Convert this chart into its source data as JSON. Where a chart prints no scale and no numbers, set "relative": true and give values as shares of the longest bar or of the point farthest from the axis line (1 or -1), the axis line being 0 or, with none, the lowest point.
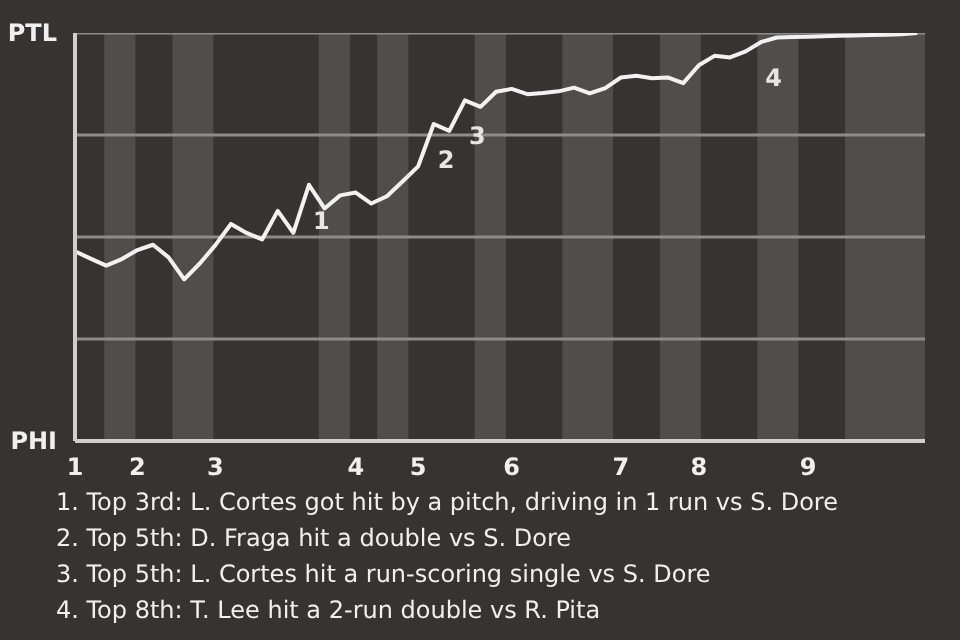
{
  "chart_data": {
    "type": "line",
    "relative": true,
    "categories": [
      "1",
      null,
      null,
      null,
      "2",
      null,
      null,
      null,
      null,
      "3",
      null,
      null,
      null,
      null,
      null,
      null,
      null,
      null,
      "4",
      null,
      null,
      null,
      "5",
      null,
      null,
      null,
      null,
      null,
      "6",
      null,
      null,
      null,
      null,
      null,
      null,
      "7",
      null,
      null,
      null,
      null,
      "8",
      null,
      null,
      null,
      null,
      null,
      null,
      "9",
      null,
      null,
      null,
      null,
      null,
      null,
      null
    ],
    "series": [
      {
        "color": "#f2f2f2",
        "values": [
          0.465,
          0.447,
          0.43,
          0.446,
          0.468,
          0.481,
          0.45,
          0.396,
          0.435,
          0.48,
          0.532,
          0.51,
          0.494,
          0.564,
          0.51,
          0.628,
          0.57,
          0.602,
          0.609,
          0.582,
          0.6,
          0.636,
          0.673,
          0.777,
          0.76,
          0.835,
          0.819,
          0.856,
          0.863,
          0.85,
          0.853,
          0.857,
          0.866,
          0.852,
          0.865,
          0.891,
          0.895,
          0.889,
          0.891,
          0.877,
          0.921,
          0.944,
          0.94,
          0.955,
          0.978,
          0.989,
          0.99,
          0.991,
          0.992,
          0.993,
          0.994,
          0.995,
          0.996,
          0.997,
          1.0
        ]
      }
    ],
    "ref_lines": [
      {
        "axis": "y",
        "value": 0.25,
        "color": "#8c8c8a"
      },
      {
        "axis": "y",
        "value": 0.5,
        "color": "#8c8c8a"
      },
      {
        "axis": "y",
        "value": 0.75,
        "color": "#8c8c8a"
      },
      {
        "axis": "y",
        "value": 1.0,
        "color": "#8c8c8a"
      }
    ],
    "annotations": [
      "PTL",
      "PHI",
      {
        "text": "1",
        "y": 0.628
      },
      {
        "text": "2",
        "y": 0.777
      },
      {
        "text": "3",
        "y": 0.835
      },
      {
        "text": "4",
        "y": 0.978
      },
      "1. Top 3rd: L. Cortes got hit by a pitch, driving in 1 run vs S. Dore",
      "2. Top 5th: D. Fraga hit a double vs S. Dore",
      "3. Top 5th: L. Cortes hit a run-scoring single vs S. Dore",
      "4. Top 8th: T. Lee hit a 2-run double vs R. Pita"
    ]
  }
}
